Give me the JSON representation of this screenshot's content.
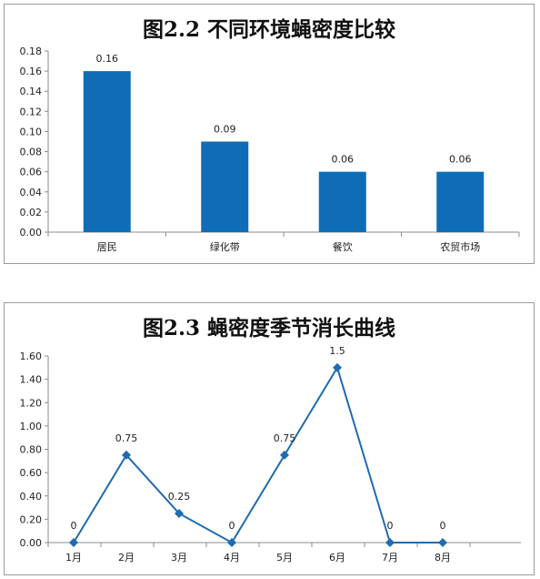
{
  "chart_data": [
    {
      "type": "bar",
      "title": "图2.2 不同环境蝇密度比较",
      "categories": [
        "居民",
        "绿化带",
        "餐饮",
        "农贸市场"
      ],
      "values": [
        0.16,
        0.09,
        0.06,
        0.06
      ],
      "data_labels": [
        "0.16",
        "0.09",
        "0.06",
        "0.06"
      ],
      "ylim": [
        0,
        0.18
      ],
      "yticks": [
        "0.00",
        "0.02",
        "0.04",
        "0.06",
        "0.08",
        "0.10",
        "0.12",
        "0.14",
        "0.16",
        "0.18"
      ],
      "color": "#0F6DB5",
      "grid": false
    },
    {
      "type": "line",
      "title": "图2.3 蝇密度季节消长曲线",
      "categories": [
        "1月",
        "2月",
        "3月",
        "4月",
        "5月",
        "6月",
        "7月",
        "8月"
      ],
      "values": [
        0,
        0.75,
        0.25,
        0,
        0.75,
        1.5,
        0,
        0
      ],
      "data_labels": [
        "0",
        "0.75",
        "0.25",
        "0",
        "0.75",
        "1.5",
        "0",
        "0"
      ],
      "ylim": [
        0,
        1.6
      ],
      "yticks": [
        "0.00",
        "0.20",
        "0.40",
        "0.60",
        "0.80",
        "1.00",
        "1.20",
        "1.40",
        "1.60"
      ],
      "color": "#1F6BB0",
      "marker": "diamond",
      "grid": false
    }
  ]
}
